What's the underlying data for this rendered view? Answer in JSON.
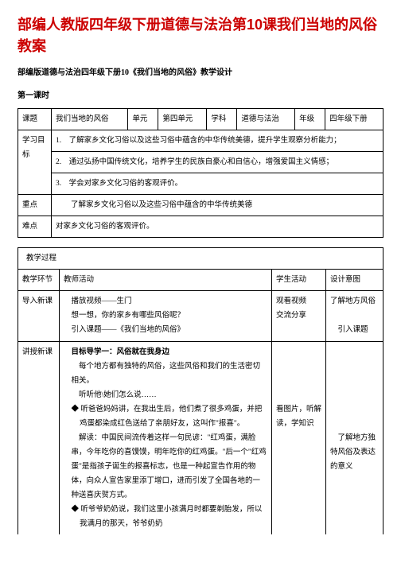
{
  "title": "部编人教版四年级下册道德与法治第10课我们当地的风俗教案",
  "subtitle": "部编版道德与法治四年级下册10《我们当地的风俗》教学设计",
  "section_label": "第一课时",
  "info": {
    "topic_label": "课题",
    "topic_value": "我们当地的风俗",
    "unit_label": "单元",
    "unit_value": "第四单元",
    "subject_label": "学科",
    "subject_value": "道德与法治",
    "grade_label": "年级",
    "grade_value": "四年级下册",
    "obj_label": "学习目标",
    "obj_1": "1.　了解家乡文化习俗以及这些习俗中蕴含的中华传统美德，提升学生观察分析能力；",
    "obj_2": "2.　通过弘扬中国传统文化，培养学生的民族自豪心和自信心，增强爱国主义情感；",
    "obj_3": "3.　学会对家乡文化习俗的客观评价。",
    "key_label": "重点",
    "key_value": "了解家乡文化习俗以及这些习俗中蕴含的中华传统美德",
    "diff_label": "难点",
    "diff_value": "对家乡文化习俗的客观评价。"
  },
  "process": {
    "header": "教学过程",
    "cols": {
      "phase": "教学环节",
      "teacher": "教师活动",
      "student": "学生活动",
      "intent": "设计意图"
    },
    "row1": {
      "phase": "导入新课",
      "teacher_1": "播放视频——生门",
      "teacher_2": "想一想，你的家乡有哪些风俗呢？",
      "teacher_3": "引入课题——《我们当地的风俗》",
      "student_1": "观看视频",
      "student_2": "交流分享",
      "intent_1": "了解地方风俗",
      "intent_2": "引入课题"
    },
    "row2": {
      "phase": "讲授新课",
      "t_line1": "目标导学一：风俗就在我身边",
      "t_line2": "每个地方都有独特的风俗，这些风俗和我们的生活密切相关。",
      "t_line3": "听听他\\她们怎么说……",
      "t_b1a": "听爸爸妈妈讲，在我出生后，他们煮了很多鸡蛋，并把鸡蛋都染成红色送给了亲朋好友，这叫作\"报喜\"。",
      "t_expl": "解读：中国民间流传着这样一句民谚：\"红鸡蛋，满脸串，今年吃你的喜馍馍，明年吃你的红鸡蛋。\"后一个\"红鸡蛋\"是指孩子诞生的报喜标志，也是一种起宣告作用的物体，向众人宣告家里添丁增口，进而引发了全国各地的一种送喜庆贺方式。",
      "t_b2a": "听爷爷奶奶说，我们这里小孩满月时都要剃胎发，所以我满月的那天，爷爷奶奶",
      "student": "看图片，听解读，学知识",
      "intent_1": "了解地方独特风俗及表达的意义"
    }
  }
}
